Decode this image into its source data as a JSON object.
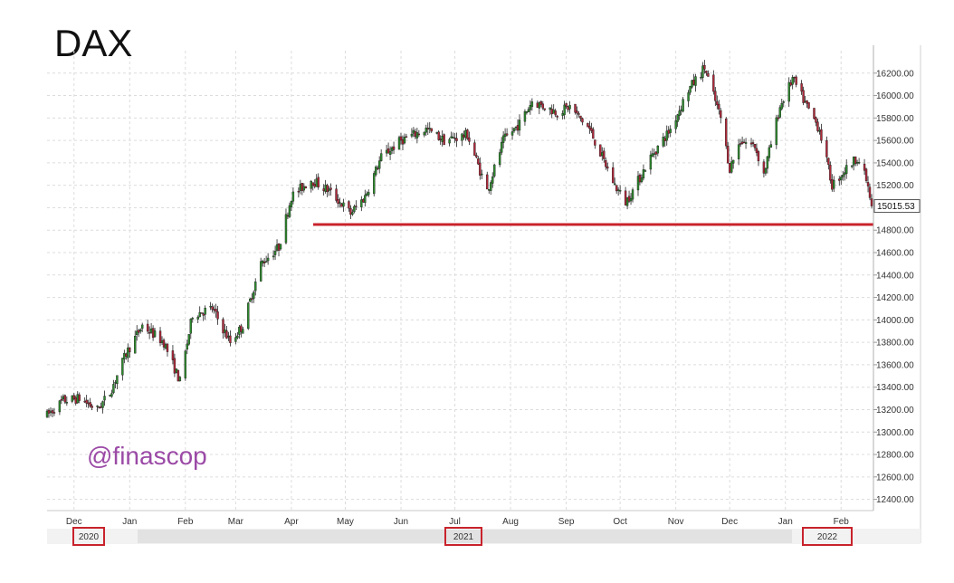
{
  "chart_data": {
    "type": "candlestick",
    "title": "DAX",
    "watermark": "@finascop",
    "y_axis": {
      "side": "right",
      "ylim": [
        12300,
        16400
      ],
      "tick_labels": [
        "12400.00",
        "12600.00",
        "12800.00",
        "13000.00",
        "13200.00",
        "13400.00",
        "13600.00",
        "13800.00",
        "14000.00",
        "14200.00",
        "14400.00",
        "14600.00",
        "14800.00",
        "15000.00",
        "15200.00",
        "15400.00",
        "15600.00",
        "15800.00",
        "16000.00",
        "16200.00"
      ],
      "grid": true
    },
    "x_axis": {
      "start_date": "2020-11-16",
      "end_date": "2022-02-18",
      "month_labels": [
        "Dec",
        "Jan",
        "Feb",
        "Mar",
        "Apr",
        "May",
        "Jun",
        "Jul",
        "Aug",
        "Sep",
        "Oct",
        "Nov",
        "Dec",
        "Jan",
        "Feb"
      ],
      "year_labels": [
        "2020",
        "2021",
        "2022"
      ],
      "grid": true
    },
    "last_price_label": "15015.53",
    "last_price": 15015.53,
    "support_level": 14850,
    "support_color": "#c8232c",
    "colors": {
      "up": "#2e8b2e",
      "down": "#b0283a",
      "wick": "#222222",
      "grid": "#dcdcdc"
    },
    "anchors": [
      [
        "2020-11-16",
        13150
      ],
      [
        "2020-11-25",
        13280
      ],
      [
        "2020-12-04",
        13300
      ],
      [
        "2020-12-14",
        13200
      ],
      [
        "2020-12-21",
        13350
      ],
      [
        "2020-12-30",
        13700
      ],
      [
        "2021-01-08",
        13950
      ],
      [
        "2021-01-20",
        13800
      ],
      [
        "2021-01-29",
        13450
      ],
      [
        "2021-02-05",
        14050
      ],
      [
        "2021-02-16",
        14100
      ],
      [
        "2021-02-26",
        13800
      ],
      [
        "2021-03-05",
        13950
      ],
      [
        "2021-03-15",
        14500
      ],
      [
        "2021-03-25",
        14650
      ],
      [
        "2021-04-01",
        15100
      ],
      [
        "2021-04-12",
        15250
      ],
      [
        "2021-04-22",
        15150
      ],
      [
        "2021-05-04",
        14950
      ],
      [
        "2021-05-12",
        15100
      ],
      [
        "2021-05-21",
        15450
      ],
      [
        "2021-06-01",
        15600
      ],
      [
        "2021-06-15",
        15700
      ],
      [
        "2021-06-25",
        15600
      ],
      [
        "2021-07-08",
        15650
      ],
      [
        "2021-07-19",
        15150
      ],
      [
        "2021-07-28",
        15600
      ],
      [
        "2021-08-06",
        15750
      ],
      [
        "2021-08-13",
        15950
      ],
      [
        "2021-08-27",
        15850
      ],
      [
        "2021-09-03",
        15900
      ],
      [
        "2021-09-14",
        15700
      ],
      [
        "2021-09-28",
        15200
      ],
      [
        "2021-10-04",
        15050
      ],
      [
        "2021-10-08",
        15150
      ],
      [
        "2021-10-18",
        15450
      ],
      [
        "2021-10-29",
        15700
      ],
      [
        "2021-11-08",
        16050
      ],
      [
        "2021-11-17",
        16250
      ],
      [
        "2021-11-26",
        15800
      ],
      [
        "2021-12-01",
        15350
      ],
      [
        "2021-12-07",
        15600
      ],
      [
        "2021-12-15",
        15550
      ],
      [
        "2021-12-20",
        15300
      ],
      [
        "2021-12-29",
        15900
      ],
      [
        "2022-01-05",
        16150
      ],
      [
        "2022-01-13",
        15900
      ],
      [
        "2022-01-20",
        15700
      ],
      [
        "2022-01-27",
        15200
      ],
      [
        "2022-02-04",
        15350
      ],
      [
        "2022-02-10",
        15450
      ],
      [
        "2022-02-15",
        15250
      ],
      [
        "2022-02-18",
        15015.53
      ]
    ]
  }
}
